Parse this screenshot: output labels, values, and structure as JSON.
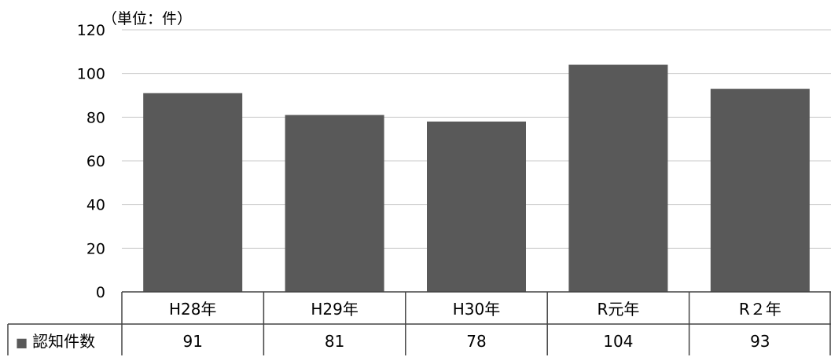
{
  "chart_data": {
    "type": "bar",
    "unit_label": "（単位：件）",
    "categories": [
      "H28年",
      "H29年",
      "H30年",
      "R元年",
      "R２年"
    ],
    "series": [
      {
        "name": "認知件数",
        "values": [
          91,
          81,
          78,
          104,
          93
        ],
        "color": "#595959"
      }
    ],
    "yticks": [
      "0",
      "20",
      "40",
      "60",
      "80",
      "100",
      "120"
    ],
    "ylim": [
      0,
      120
    ],
    "grid": true,
    "legend_marker": "■",
    "data_table": true
  }
}
